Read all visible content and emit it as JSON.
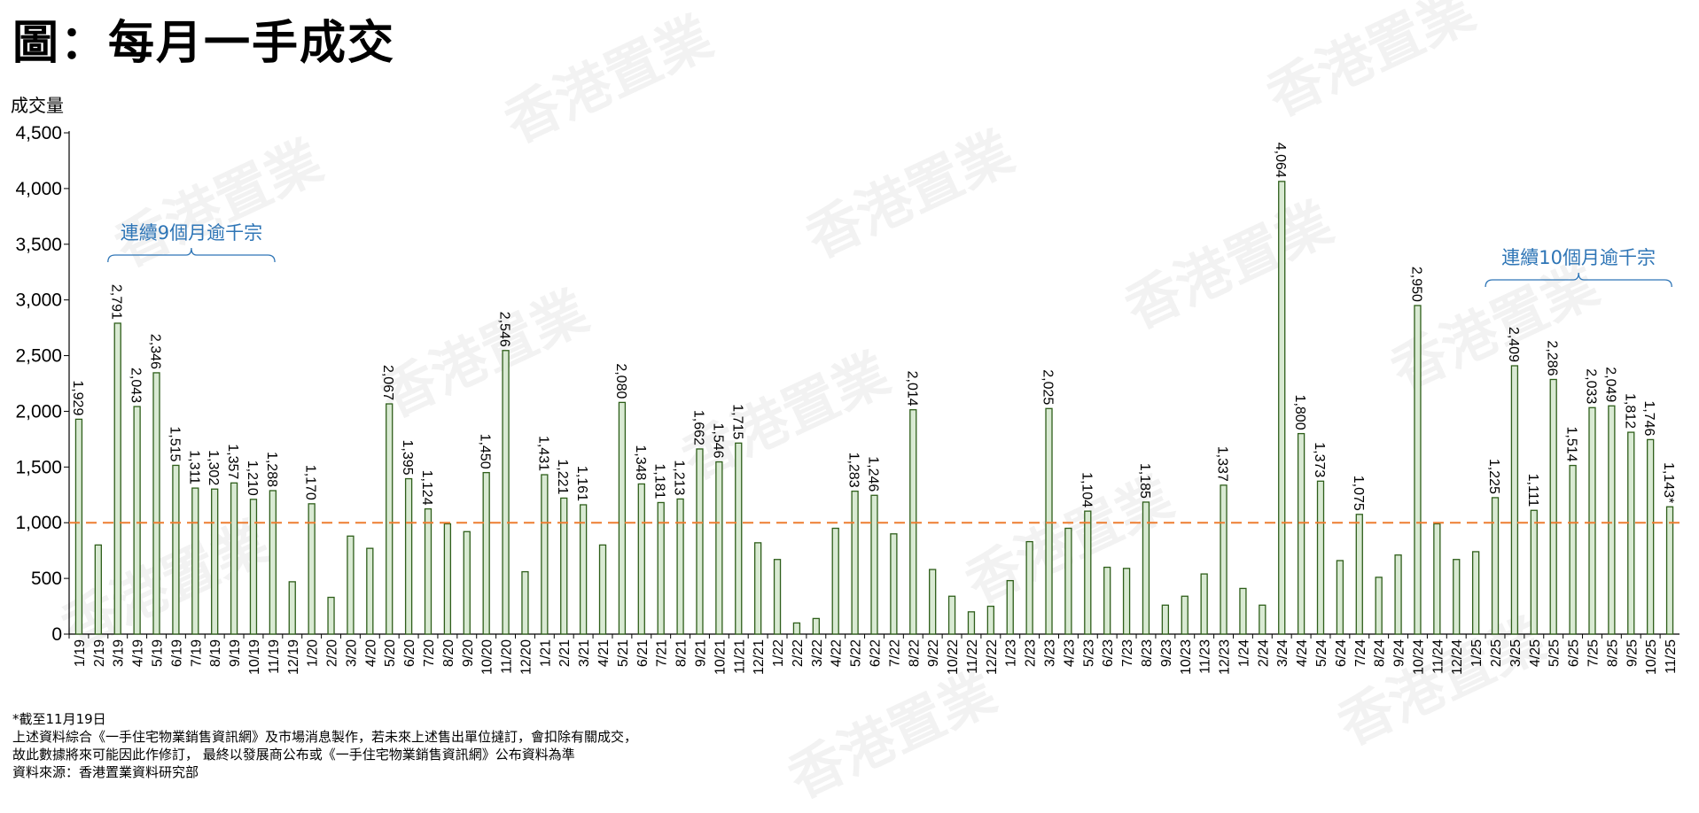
{
  "title": "圖：每月一手成交",
  "watermark": "香港置業",
  "colors": {
    "bar_fill": "#d9ead3",
    "bar_stroke": "#2e5e1a",
    "threshold_line": "#ed7d31",
    "annotation": "#2e75b6"
  },
  "chart_data": {
    "type": "bar",
    "ylabel": "成交量",
    "ylim": [
      0,
      4500
    ],
    "yticks": [
      "0",
      "500",
      "1,000",
      "1,500",
      "2,000",
      "2,500",
      "3,000",
      "3,500",
      "4,000",
      "4,500"
    ],
    "reference_line": {
      "value": 1000,
      "style": "dashed"
    },
    "categories": [
      "1/19",
      "2/19",
      "3/19",
      "4/19",
      "5/19",
      "6/19",
      "7/19",
      "8/19",
      "9/19",
      "10/19",
      "11/19",
      "12/19",
      "1/20",
      "2/20",
      "3/20",
      "4/20",
      "5/20",
      "6/20",
      "7/20",
      "8/20",
      "9/20",
      "10/20",
      "11/20",
      "12/20",
      "1/21",
      "2/21",
      "3/21",
      "4/21",
      "5/21",
      "6/21",
      "7/21",
      "8/21",
      "9/21",
      "10/21",
      "11/21",
      "12/21",
      "1/22",
      "2/22",
      "3/22",
      "4/22",
      "5/22",
      "6/22",
      "7/22",
      "8/22",
      "9/22",
      "10/22",
      "11/22",
      "12/22",
      "1/23",
      "2/23",
      "3/23",
      "4/23",
      "5/23",
      "6/23",
      "7/23",
      "8/23",
      "9/23",
      "10/23",
      "11/23",
      "12/23",
      "1/24",
      "2/24",
      "3/24",
      "4/24",
      "5/24",
      "6/24",
      "7/24",
      "8/24",
      "9/24",
      "10/24",
      "11/24",
      "12/24",
      "1/25",
      "2/25",
      "3/25",
      "4/25",
      "5/25",
      "6/25",
      "7/25",
      "8/25",
      "9/25",
      "10/25",
      "11/25"
    ],
    "values": [
      1929,
      800,
      2791,
      2043,
      2346,
      1515,
      1311,
      1302,
      1357,
      1210,
      1288,
      470,
      1170,
      330,
      880,
      770,
      2067,
      1395,
      1124,
      990,
      920,
      1450,
      2546,
      560,
      1431,
      1221,
      1161,
      800,
      2080,
      1348,
      1181,
      1213,
      1662,
      1546,
      1715,
      820,
      670,
      100,
      140,
      950,
      1283,
      1246,
      900,
      2014,
      580,
      340,
      200,
      250,
      480,
      830,
      2025,
      950,
      1104,
      600,
      590,
      1185,
      260,
      340,
      540,
      1337,
      410,
      260,
      4064,
      1800,
      1373,
      660,
      1075,
      510,
      710,
      2950,
      990,
      670,
      740,
      1225,
      2409,
      1111,
      2286,
      1514,
      2033,
      2049,
      1812,
      1746,
      1143
    ],
    "data_labels": [
      "1,929",
      "",
      "2,791",
      "2,043",
      "2,346",
      "1,515",
      "1,311",
      "1,302",
      "1,357",
      "1,210",
      "1,288",
      "",
      "1,170",
      "",
      "",
      "",
      "2,067",
      "1,395",
      "1,124",
      "",
      "",
      "1,450",
      "2,546",
      "",
      "1,431",
      "1,221",
      "1,161",
      "",
      "2,080",
      "1,348",
      "1,181",
      "1,213",
      "1,662",
      "1,546",
      "1,715",
      "",
      "",
      "",
      "",
      "",
      "1,283",
      "1,246",
      "",
      "2,014",
      "",
      "",
      "",
      "",
      "",
      "",
      "2,025",
      "",
      "1,104",
      "",
      "",
      "1,185",
      "",
      "",
      "",
      "1,337",
      "",
      "",
      "4,064",
      "1,800",
      "1,373",
      "",
      "1,075",
      "",
      "",
      "2,950",
      "",
      "",
      "",
      "1,225",
      "2,409",
      "1,111",
      "2,286",
      "1,514",
      "2,033",
      "2,049",
      "1,812",
      "1,746",
      "1,143*"
    ],
    "annotations": [
      {
        "text": "連續9個月逾千宗",
        "from_index": 2,
        "to_index": 10
      },
      {
        "text": "連續10個月逾千宗",
        "from_index": 73,
        "to_index": 82
      }
    ]
  },
  "footer": {
    "lines": [
      "*截至11月19日",
      "上述資料綜合《一手住宅物業銷售資訊網》及市場消息製作，若未來上述售出單位撻訂，會扣除有關成交，",
      "故此數據將來可能因此作修訂， 最終以發展商公布或《一手住宅物業銷售資訊網》公布資料為準",
      "資料來源：香港置業資料研究部"
    ]
  }
}
